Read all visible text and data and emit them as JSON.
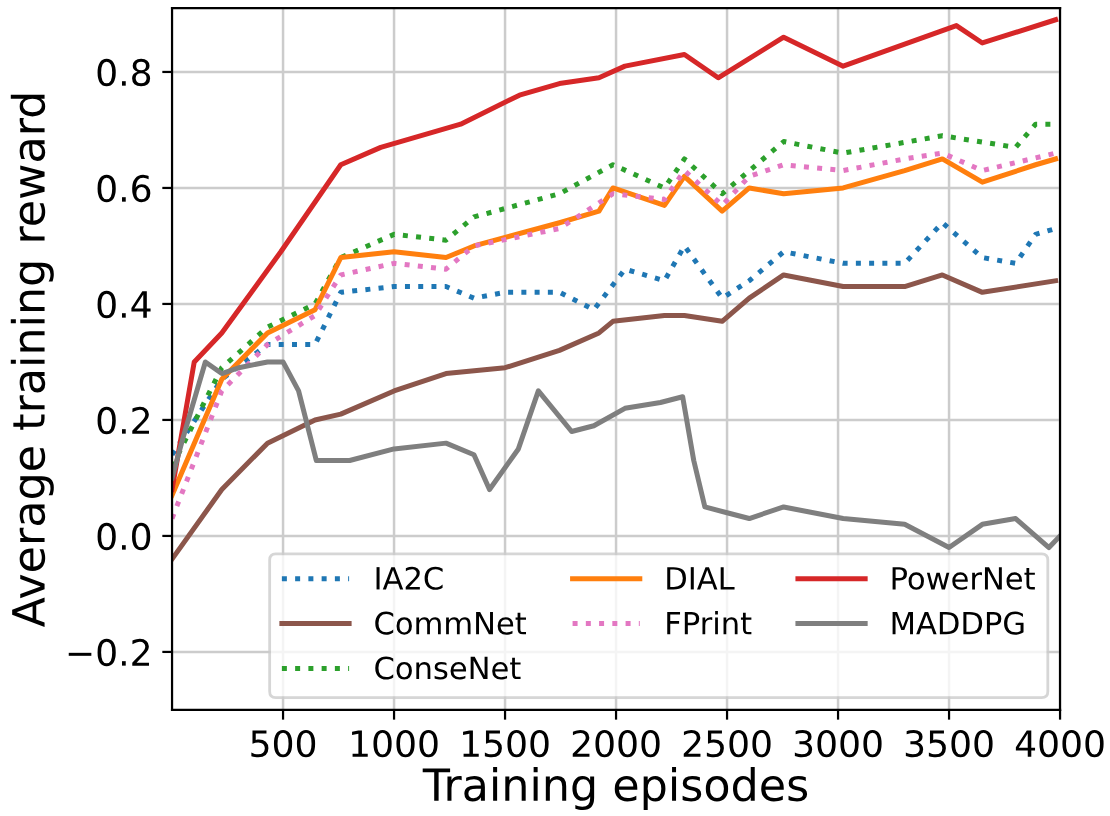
{
  "chart_data": {
    "type": "line",
    "xlabel": "Training episodes",
    "ylabel": "Average training reward",
    "xlim": [
      0,
      4000
    ],
    "ylim": [
      -0.3,
      0.91
    ],
    "xticks": [
      500,
      1000,
      1500,
      2000,
      2500,
      3000,
      3500,
      4000
    ],
    "yticks": [
      {
        "value": -0.2,
        "label": "−0.2"
      },
      {
        "value": 0.0,
        "label": "0.0"
      },
      {
        "value": 0.2,
        "label": "0.2"
      },
      {
        "value": 0.4,
        "label": "0.4"
      },
      {
        "value": 0.6,
        "label": "0.6"
      },
      {
        "value": 0.8,
        "label": "0.8"
      }
    ],
    "grid": true,
    "legend": "bottom right",
    "marker": "none",
    "series": [
      {
        "name": "IA2C",
        "color": "#1f77b4",
        "line_style": "dotted",
        "x": [
          0,
          224,
          430,
          644,
          760,
          1000,
          1234,
          1360,
          1500,
          1745,
          1900,
          2040,
          2218,
          2308,
          2478,
          2600,
          2755,
          3023,
          3300,
          3470,
          3650,
          3800,
          3890,
          3980
        ],
        "values": [
          0.14,
          0.27,
          0.33,
          0.33,
          0.42,
          0.43,
          0.43,
          0.41,
          0.42,
          0.42,
          0.39,
          0.46,
          0.44,
          0.5,
          0.41,
          0.44,
          0.49,
          0.47,
          0.47,
          0.54,
          0.48,
          0.47,
          0.52,
          0.53
        ]
      },
      {
        "name": "CommNet",
        "color": "#8c564b",
        "line_style": "solid",
        "x": [
          0,
          224,
          430,
          644,
          760,
          1000,
          1234,
          1500,
          1745,
          1923,
          1986,
          2218,
          2308,
          2478,
          2600,
          2755,
          3023,
          3300,
          3470,
          3650,
          3980
        ],
        "values": [
          -0.04,
          0.08,
          0.16,
          0.2,
          0.21,
          0.25,
          0.28,
          0.29,
          0.32,
          0.35,
          0.37,
          0.38,
          0.38,
          0.37,
          0.41,
          0.45,
          0.43,
          0.43,
          0.45,
          0.42,
          0.44
        ]
      },
      {
        "name": "ConseNet",
        "color": "#2ca02c",
        "line_style": "dotted",
        "x": [
          0,
          224,
          430,
          644,
          760,
          1000,
          1234,
          1360,
          1745,
          1986,
          2218,
          2308,
          2478,
          2755,
          3023,
          3470,
          3800,
          3890,
          3980
        ],
        "values": [
          0.12,
          0.29,
          0.36,
          0.4,
          0.48,
          0.52,
          0.51,
          0.55,
          0.59,
          0.64,
          0.6,
          0.65,
          0.59,
          0.68,
          0.66,
          0.69,
          0.67,
          0.71,
          0.71
        ]
      },
      {
        "name": "DIAL",
        "color": "#ff7f0e",
        "line_style": "solid",
        "x": [
          0,
          224,
          430,
          644,
          760,
          1000,
          1234,
          1360,
          1745,
          1923,
          1986,
          2218,
          2308,
          2478,
          2600,
          2755,
          3023,
          3300,
          3470,
          3650,
          3890,
          3980
        ],
        "values": [
          0.07,
          0.27,
          0.35,
          0.39,
          0.48,
          0.49,
          0.48,
          0.5,
          0.54,
          0.56,
          0.6,
          0.57,
          0.62,
          0.56,
          0.6,
          0.59,
          0.6,
          0.63,
          0.65,
          0.61,
          0.64,
          0.65
        ]
      },
      {
        "name": "FPrint",
        "color": "#e377c2",
        "line_style": "dotted",
        "x": [
          0,
          224,
          430,
          644,
          760,
          1000,
          1234,
          1360,
          1745,
          1986,
          2218,
          2308,
          2478,
          2600,
          2755,
          3023,
          3300,
          3470,
          3650,
          3980
        ],
        "values": [
          0.03,
          0.25,
          0.33,
          0.38,
          0.45,
          0.47,
          0.46,
          0.5,
          0.53,
          0.59,
          0.58,
          0.63,
          0.57,
          0.62,
          0.64,
          0.63,
          0.65,
          0.66,
          0.63,
          0.66
        ]
      },
      {
        "name": "PowerNet",
        "color": "#d62728",
        "line_style": "solid",
        "x": [
          0,
          100,
          224,
          490,
          760,
          940,
          1300,
          1565,
          1745,
          1923,
          2040,
          2308,
          2460,
          2755,
          3023,
          3533,
          3650,
          3980
        ],
        "values": [
          0.08,
          0.3,
          0.35,
          0.49,
          0.64,
          0.67,
          0.71,
          0.76,
          0.78,
          0.79,
          0.81,
          0.83,
          0.79,
          0.86,
          0.81,
          0.88,
          0.85,
          0.89
        ]
      },
      {
        "name": "MADDPG",
        "color": "#7f7f7f",
        "line_style": "solid",
        "x": [
          0,
          50,
          150,
          224,
          300,
          430,
          500,
          570,
          650,
          800,
          1000,
          1234,
          1360,
          1430,
          1560,
          1650,
          1800,
          1900,
          2040,
          2200,
          2300,
          2350,
          2400,
          2500,
          2600,
          2755,
          3023,
          3300,
          3500,
          3650,
          3800,
          3950,
          4000
        ],
        "values": [
          0.1,
          0.17,
          0.3,
          0.28,
          0.29,
          0.3,
          0.3,
          0.25,
          0.13,
          0.13,
          0.15,
          0.16,
          0.14,
          0.08,
          0.15,
          0.25,
          0.18,
          0.19,
          0.22,
          0.23,
          0.24,
          0.13,
          0.05,
          0.04,
          0.03,
          0.05,
          0.03,
          0.02,
          -0.02,
          0.02,
          0.03,
          -0.02,
          0.0
        ]
      }
    ]
  }
}
